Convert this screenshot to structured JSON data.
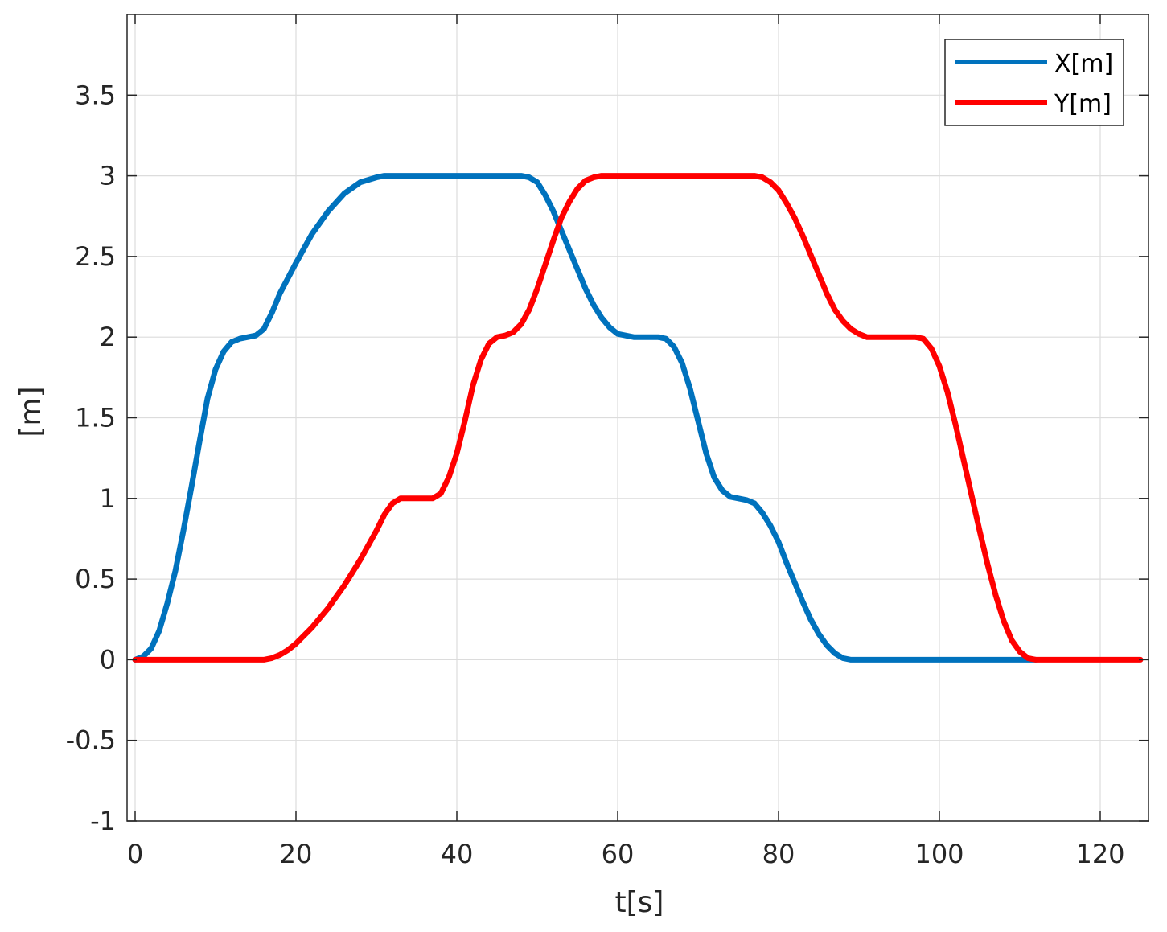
{
  "chart_data": {
    "type": "line",
    "title": "",
    "xlabel": "t[s]",
    "ylabel": "[m]",
    "xlim": [
      -1,
      126
    ],
    "ylim": [
      -1,
      4
    ],
    "xticks": [
      0,
      20,
      40,
      60,
      80,
      100,
      120
    ],
    "yticks": [
      -1,
      -0.5,
      0,
      0.5,
      1,
      1.5,
      2,
      2.5,
      3,
      3.5
    ],
    "xtick_labels": [
      "0",
      "20",
      "40",
      "60",
      "80",
      "100",
      "120"
    ],
    "ytick_labels": [
      "-1",
      "-0.5",
      "0",
      "0.5",
      "1",
      "1.5",
      "2",
      "2.5",
      "3",
      "3.5"
    ],
    "grid": true,
    "legend_position": "top-right",
    "series": [
      {
        "name": "X[m]",
        "color": "#0072BD",
        "x": [
          0,
          1,
          2,
          3,
          4,
          5,
          6,
          7,
          8,
          9,
          10,
          11,
          12,
          13,
          14,
          15,
          16,
          17,
          18,
          20,
          22,
          24,
          26,
          28,
          30,
          31,
          35,
          40,
          45,
          48,
          49,
          50,
          51,
          52,
          53,
          54,
          55,
          56,
          57,
          58,
          59,
          60,
          61,
          62,
          63,
          64,
          65,
          66,
          67,
          68,
          69,
          70,
          71,
          72,
          73,
          74,
          75,
          76,
          77,
          78,
          79,
          80,
          81,
          82,
          83,
          84,
          85,
          86,
          87,
          88,
          89,
          90,
          100,
          110,
          112
        ],
        "y": [
          0,
          0.02,
          0.07,
          0.18,
          0.35,
          0.55,
          0.8,
          1.07,
          1.35,
          1.62,
          1.8,
          1.91,
          1.97,
          1.99,
          2.0,
          2.01,
          2.05,
          2.15,
          2.27,
          2.46,
          2.64,
          2.78,
          2.89,
          2.96,
          2.99,
          3.0,
          3.0,
          3.0,
          3.0,
          3.0,
          2.99,
          2.96,
          2.88,
          2.78,
          2.66,
          2.54,
          2.42,
          2.3,
          2.2,
          2.12,
          2.06,
          2.02,
          2.01,
          2.0,
          2.0,
          2.0,
          2.0,
          1.99,
          1.94,
          1.84,
          1.68,
          1.48,
          1.28,
          1.13,
          1.05,
          1.01,
          1.0,
          0.99,
          0.97,
          0.91,
          0.83,
          0.73,
          0.6,
          0.48,
          0.36,
          0.25,
          0.16,
          0.09,
          0.04,
          0.01,
          0.0,
          0.0,
          0.0,
          0.0,
          0.0
        ]
      },
      {
        "name": "Y[m]",
        "color": "#FF0000",
        "x": [
          0,
          5,
          10,
          15,
          16,
          17,
          18,
          19,
          20,
          22,
          24,
          26,
          28,
          30,
          31,
          32,
          33,
          35,
          37,
          38,
          39,
          40,
          41,
          42,
          43,
          44,
          45,
          46,
          47,
          48,
          49,
          50,
          51,
          52,
          53,
          54,
          55,
          56,
          57,
          58,
          59,
          60,
          61,
          62,
          65,
          70,
          75,
          77,
          78,
          79,
          80,
          81,
          82,
          83,
          84,
          85,
          86,
          87,
          88,
          89,
          90,
          91,
          92,
          95,
          97,
          98,
          99,
          100,
          101,
          102,
          103,
          104,
          105,
          106,
          107,
          108,
          109,
          110,
          111,
          112,
          115,
          120,
          125
        ],
        "y": [
          0,
          0,
          0,
          0,
          0,
          0.01,
          0.03,
          0.06,
          0.1,
          0.2,
          0.32,
          0.46,
          0.62,
          0.8,
          0.9,
          0.97,
          1.0,
          1.0,
          1.0,
          1.03,
          1.13,
          1.28,
          1.48,
          1.7,
          1.86,
          1.96,
          2.0,
          2.01,
          2.03,
          2.08,
          2.17,
          2.3,
          2.45,
          2.6,
          2.74,
          2.84,
          2.92,
          2.97,
          2.99,
          3.0,
          3.0,
          3.0,
          3.0,
          3.0,
          3.0,
          3.0,
          3.0,
          3.0,
          2.99,
          2.96,
          2.91,
          2.83,
          2.74,
          2.63,
          2.51,
          2.39,
          2.27,
          2.17,
          2.1,
          2.05,
          2.02,
          2.0,
          2.0,
          2.0,
          2.0,
          1.99,
          1.93,
          1.82,
          1.66,
          1.46,
          1.24,
          1.02,
          0.8,
          0.59,
          0.4,
          0.24,
          0.12,
          0.05,
          0.01,
          0.0,
          0.0,
          0.0,
          0.0
        ]
      }
    ]
  }
}
